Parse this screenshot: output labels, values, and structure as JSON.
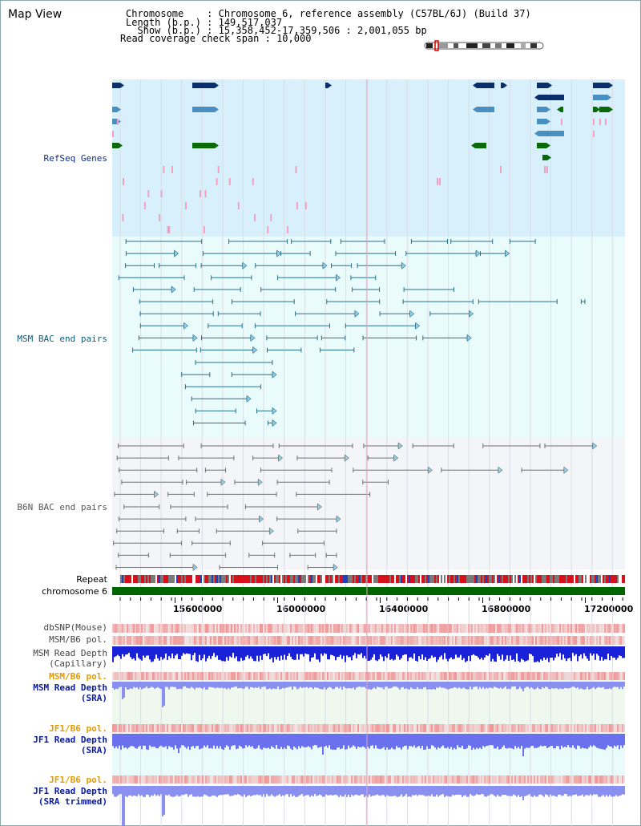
{
  "title": "Map View",
  "header": {
    "chromosome": "Chromosome    : Chromosome 6, reference assembly (C57BL/6J) (Build 37)",
    "length": "Length (b.p.) : 149,517,037",
    "show": "  Show (b.p.) : 15,358,452-17,359,506 : 2,001,055 bp",
    "span": "Read coverage check span : 10,000"
  },
  "tracks": {
    "refseq": "RefSeq Genes",
    "msm_bac": "MSM BAC end pairs",
    "b6n_bac": "B6N BAC end pairs",
    "repeat": "Repeat",
    "chromosome": "chromosome 6",
    "dbsnp": "dbSNP(Mouse)",
    "msm_b6_pol": "MSM/B6 pol.",
    "msm_depth_cap_1": "MSM Read Depth",
    "msm_depth_cap_2": "(Capillary)",
    "msm_b6_pol_2": "MSM/B6 pol.",
    "msm_depth_sra_1": "MSM Read Depth",
    "msm_depth_sra_2": "(SRA)",
    "jf1_b6_pol": "JF1/B6 pol.",
    "jf1_depth_sra_1": "JF1 Read Depth",
    "jf1_depth_sra_2": "(SRA)",
    "jf1_b6_pol_2": "JF1/B6 pol.",
    "jf1_depth_trim_1": "JF1 Read Depth",
    "jf1_depth_trim_2": "(SRA trimmed)"
  },
  "axis": {
    "ticks": [
      "15600000",
      "16000000",
      "16400000",
      "16800000",
      "17200000"
    ],
    "range": [
      15358452,
      17359506
    ]
  },
  "colors": {
    "refseq_bg": "#d8f0fb",
    "msm_bg": "#eafbfc",
    "b6n_bg": "#f3f5f8",
    "gene_dark": "#0b2f6a",
    "gene_mid": "#4a8fc0",
    "gene_green": "#0a6a0a",
    "chrom_bar": "#006400"
  }
}
